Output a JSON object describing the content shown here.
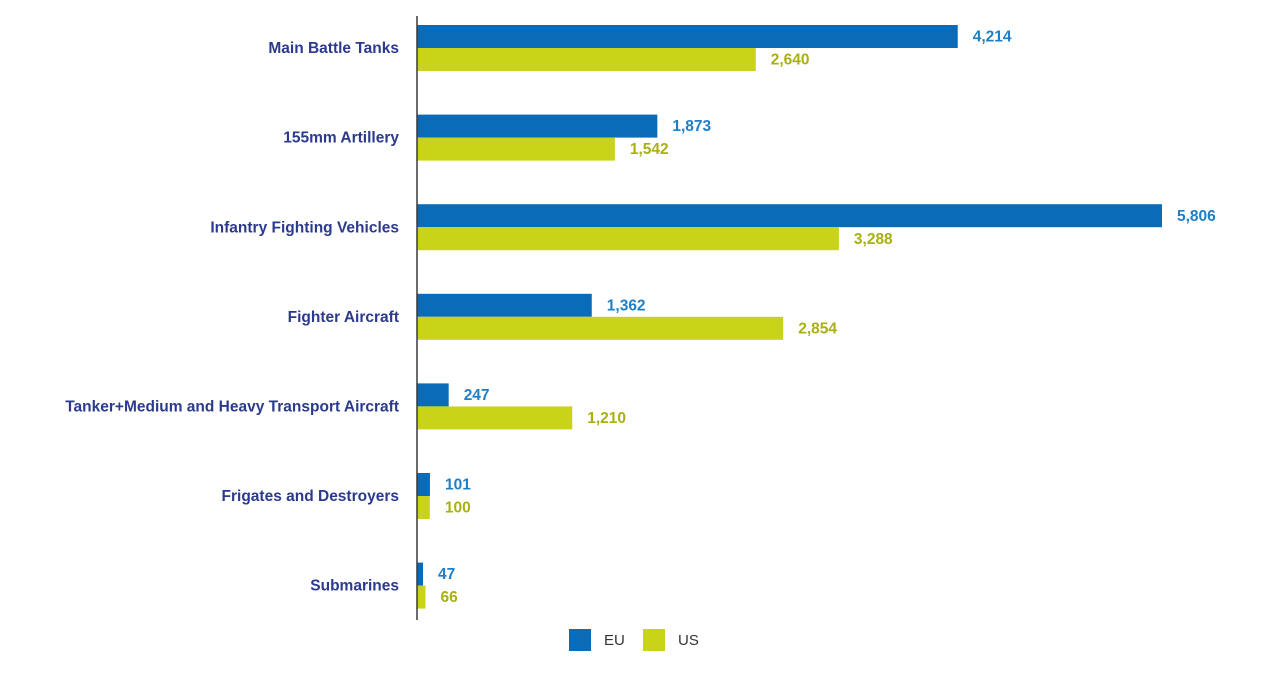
{
  "chart_data": {
    "type": "bar",
    "orientation": "horizontal",
    "title": "",
    "xlabel": "",
    "ylabel": "",
    "xlim": [
      0,
      5806
    ],
    "grid": false,
    "legend_position": "bottom",
    "categories": [
      "Main Battle Tanks",
      "155mm Artillery",
      "Infantry Fighting Vehicles",
      "Fighter Aircraft",
      "Tanker+Medium and Heavy Transport Aircraft",
      "Frigates and Destroyers",
      "Submarines"
    ],
    "series": [
      {
        "name": "EU",
        "color": "#0a6bb8",
        "label_color": "#1f7fc6",
        "values": [
          4214,
          1873,
          5806,
          1362,
          247,
          101,
          47
        ],
        "labels": [
          "4,214",
          "1,873",
          "5,806",
          "1,362",
          "247",
          "101",
          "47"
        ]
      },
      {
        "name": "US",
        "color": "#c9d418",
        "label_color": "#a8b10f",
        "values": [
          2640,
          1542,
          3288,
          2854,
          1210,
          100,
          66
        ],
        "labels": [
          "2,640",
          "1,542",
          "3,288",
          "2,854",
          "1,210",
          "100",
          "66"
        ]
      }
    ]
  }
}
